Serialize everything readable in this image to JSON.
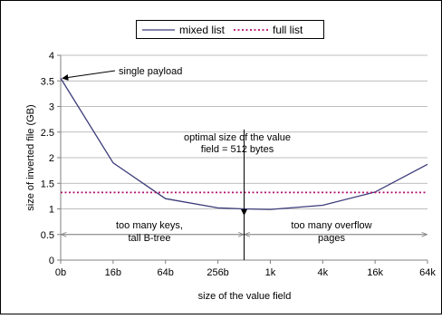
{
  "chart_data": {
    "type": "line",
    "title": "",
    "xlabel": "size of the value field",
    "ylabel": "size of inverted file (GB)",
    "categories": [
      "0b",
      "16b",
      "64b",
      "256b",
      "1k",
      "4k",
      "16k",
      "64k"
    ],
    "ylim": [
      0,
      4
    ],
    "yticks": [
      "0",
      "0.5",
      "1",
      "1.5",
      "2",
      "2.5",
      "3",
      "3.5",
      "4"
    ],
    "grid": "horizontal",
    "legend_position": "top",
    "series": [
      {
        "name": "mixed list",
        "style": "solid",
        "color": "#3b3b7a",
        "x": [
          0,
          1,
          2,
          3,
          3.5,
          4,
          5,
          6,
          7
        ],
        "y": [
          3.55,
          1.9,
          1.2,
          1.02,
          1.0,
          0.99,
          1.07,
          1.33,
          1.87
        ]
      },
      {
        "name": "full list",
        "style": "dotted",
        "color": "#b0106e",
        "x": [
          0,
          7
        ],
        "y": [
          1.32,
          1.32
        ]
      }
    ],
    "annotations": {
      "single_payload": "single payload",
      "optimal_line1": "optimal size of the value",
      "optimal_line2": "field = 512 bytes",
      "left_region_line1": "too many keys,",
      "left_region_line2": "tall B-tree",
      "right_region_line1": "too many overflow",
      "right_region_line2": "pages"
    },
    "annotation_points": {
      "single_payload_target": [
        0,
        3.55
      ],
      "optimal_x": 3.5,
      "optimal_arrow_top_y": 2.55,
      "region_arrow_y": 0.5
    }
  }
}
